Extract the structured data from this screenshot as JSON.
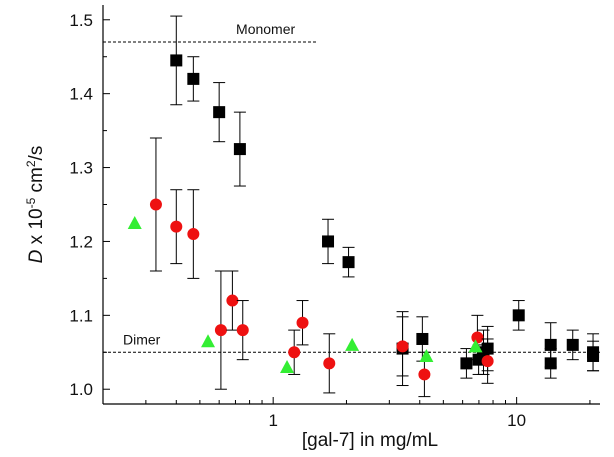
{
  "chart_data": {
    "type": "scatter",
    "x_label": "[gal-7] in mg/mL",
    "y_label_parts": [
      {
        "text": "D",
        "style": "italic"
      },
      {
        "text": " x 10",
        "style": "normal"
      },
      {
        "text": "-5",
        "style": "sup"
      },
      {
        "text": " cm",
        "style": "normal"
      },
      {
        "text": "2",
        "style": "sup"
      },
      {
        "text": "/s",
        "style": "normal"
      }
    ],
    "xscale": "log",
    "xlim": [
      0.2,
      22
    ],
    "xticks": [
      1,
      10
    ],
    "xminorticks": [
      0.2,
      0.3,
      0.4,
      0.5,
      0.6,
      0.7,
      0.8,
      0.9,
      2,
      3,
      4,
      5,
      6,
      7,
      8,
      9,
      20
    ],
    "ylim": [
      0.98,
      1.52
    ],
    "yticks": [
      {
        "value": 1,
        "label": "1.0"
      },
      1.1,
      1.2,
      1.3,
      1.4,
      1.5
    ],
    "yminorticks": [
      1.05,
      1.15,
      1.25,
      1.35,
      1.45
    ],
    "hlines": [
      {
        "label": "Monomer",
        "value": 1.47,
        "xmax": 1.5
      },
      {
        "label": "Dimer",
        "value": 1.05
      }
    ],
    "series": [
      {
        "color": "#000000",
        "marker": "square",
        "x": [
          0.4,
          0.47,
          0.6,
          0.73,
          1.68,
          2.04,
          3.4,
          4.1,
          6.22,
          6.98,
          7.31,
          7.6,
          10.2,
          13.8,
          13.8,
          17.0,
          20.6,
          20.6
        ],
        "values": [
          1.445,
          1.42,
          1.375,
          1.325,
          1.2,
          1.172,
          1.055,
          1.068,
          1.035,
          1.04,
          1.05,
          1.055,
          1.1,
          1.06,
          1.035,
          1.06,
          1.05,
          1.045
        ],
        "errors": [
          0.06,
          0.03,
          0.04,
          0.05,
          0.03,
          0.02,
          0.05,
          0.03,
          0.02,
          0.02,
          0.03,
          0.03,
          0.02,
          0.03,
          0.02,
          0.02,
          0.025,
          0.02
        ]
      },
      {
        "color": "#ee1111",
        "marker": "circle",
        "x": [
          0.33,
          0.4,
          0.47,
          0.61,
          0.68,
          0.75,
          1.22,
          1.32,
          1.7,
          3.4,
          4.18,
          6.9,
          7.6
        ],
        "values": [
          1.25,
          1.22,
          1.21,
          1.08,
          1.12,
          1.08,
          1.05,
          1.09,
          1.035,
          1.058,
          1.02,
          1.07,
          1.038
        ],
        "errors": [
          0.09,
          0.05,
          0.06,
          0.08,
          0.04,
          0.04,
          0.03,
          0.03,
          0.04,
          0.04,
          0.03,
          0.03,
          0.03
        ]
      },
      {
        "color": "#33ee33",
        "marker": "triangle",
        "x": [
          0.27,
          0.54,
          1.14,
          2.11,
          4.26,
          6.78
        ],
        "values": [
          1.225,
          1.065,
          1.03,
          1.06,
          1.045,
          1.058
        ]
      }
    ]
  }
}
